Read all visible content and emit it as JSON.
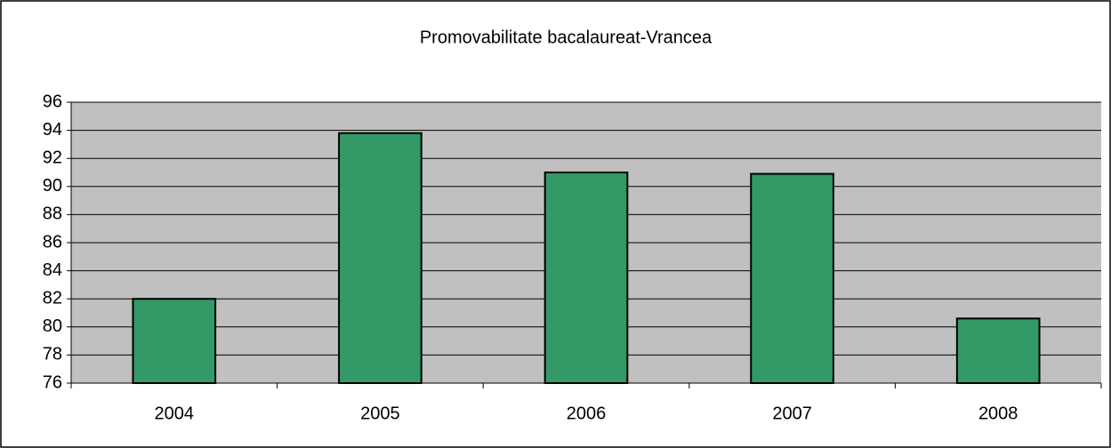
{
  "chart_data": {
    "type": "bar",
    "title": "Promovabilitate bacalaureat-Vrancea",
    "categories": [
      "2004",
      "2005",
      "2006",
      "2007",
      "2008"
    ],
    "values": [
      82,
      93.8,
      91,
      90.9,
      80.6
    ],
    "color": "#339966",
    "ylim": [
      76,
      96
    ],
    "yticks": [
      76,
      78,
      80,
      82,
      84,
      86,
      88,
      90,
      92,
      94,
      96
    ],
    "grid": true
  }
}
